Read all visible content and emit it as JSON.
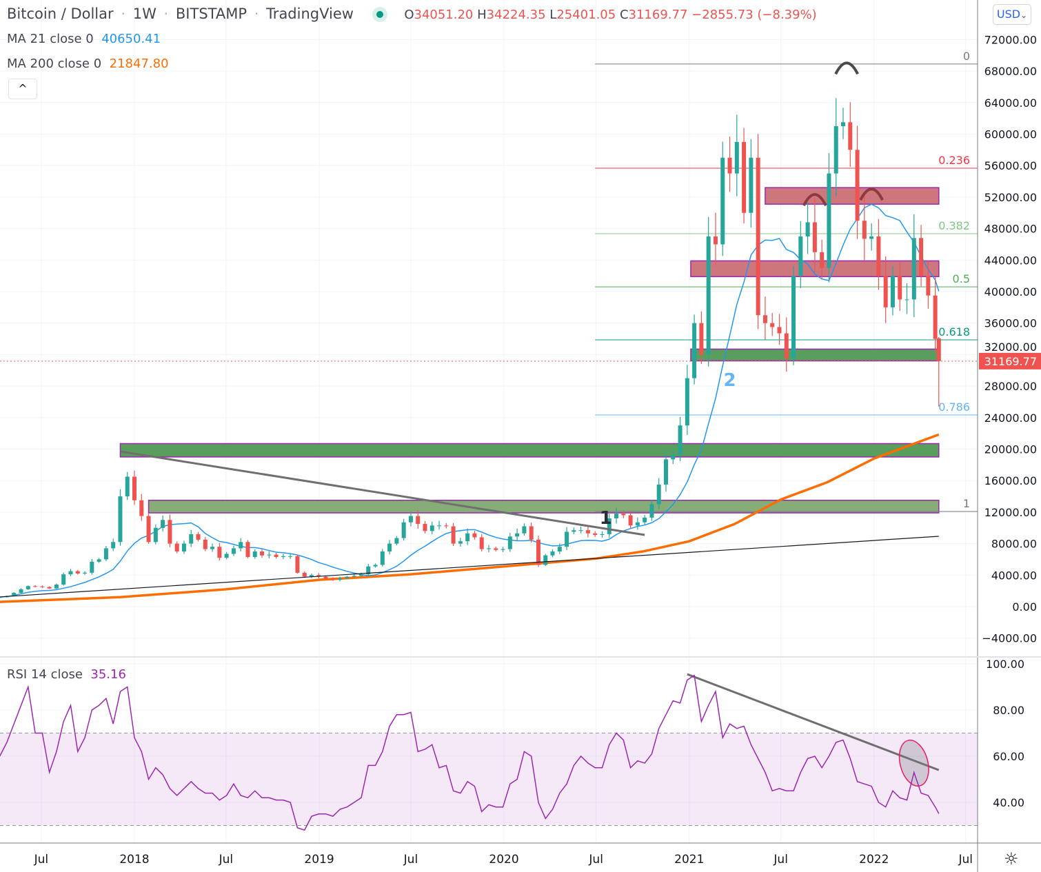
{
  "header": {
    "symbol": "Bitcoin / Dollar",
    "interval": "1W",
    "exchange": "BITSTAMP",
    "source": "TradingView",
    "sep": "·",
    "o_label": "O",
    "o": "34051.20",
    "h_label": "H",
    "h": "34224.35",
    "l_label": "L",
    "l": "25401.05",
    "c_label": "C",
    "c": "31169.77",
    "change": "−2855.73 (−8.39%)"
  },
  "indicators": {
    "ma21_label": "MA 21 close 0",
    "ma21_value": "40650.41",
    "ma200_label": "MA 200 close 0",
    "ma200_value": "21847.80",
    "rsi_label": "RSI 14 close",
    "rsi_value": "35.16"
  },
  "controls": {
    "collapse": "^",
    "currency": "USD",
    "currency_chevron": "⌄",
    "settings_icon": "gear-icon",
    "settings_glyph": "☼"
  },
  "colors": {
    "up": "#26a69a",
    "down": "#ef5350",
    "ma21": "#2196f3",
    "ma200": "#ff6d00",
    "rsi": "#9c27b0",
    "last_price": "#ef5350"
  },
  "chart_data": {
    "type": "candlestick",
    "interval": "1W",
    "last_price": "31169.77",
    "last_ohlc": [
      34051.2,
      34224.35,
      25401.05,
      31169.77
    ],
    "price_ticks": [
      72000,
      68000,
      64000,
      60000,
      56000,
      52000,
      48000,
      44000,
      40000,
      36000,
      32000,
      28000,
      24000,
      20000,
      16000,
      12000,
      8000,
      4000,
      0,
      -4000
    ],
    "price_tick_labels": [
      "72000.00",
      "68000.00",
      "64000.00",
      "60000.00",
      "56000.00",
      "52000.00",
      "48000.00",
      "44000.00",
      "40000.00",
      "36000.00",
      "32000.00",
      "28000.00",
      "24000.00",
      "20000.00",
      "16000.00",
      "12000.00",
      "8000.00",
      "4000.00",
      "0.00",
      "−4000.00"
    ],
    "rsi_ticks": [
      100,
      80,
      60,
      40
    ],
    "rsi_tick_labels": [
      "100.00",
      "80.00",
      "60.00",
      "40.00"
    ],
    "rsi_band": [
      30,
      70
    ],
    "time_ticks": [
      {
        "date": "2017-07-01",
        "label": "Jul"
      },
      {
        "date": "2018-01-01",
        "label": "2018"
      },
      {
        "date": "2018-07-01",
        "label": "Jul"
      },
      {
        "date": "2019-01-01",
        "label": "2019"
      },
      {
        "date": "2019-07-01",
        "label": "Jul"
      },
      {
        "date": "2020-01-01",
        "label": "2020"
      },
      {
        "date": "2020-07-01",
        "label": "Jul"
      },
      {
        "date": "2021-01-01",
        "label": "2021"
      },
      {
        "date": "2021-07-01",
        "label": "Jul"
      },
      {
        "date": "2022-01-01",
        "label": "2022"
      },
      {
        "date": "2022-07-01",
        "label": "Jul"
      }
    ],
    "grid": true,
    "series_columns": [
      "date",
      "close",
      "rsi"
    ],
    "candles": [
      [
        "2017-04-10",
        1200,
        60
      ],
      [
        "2017-04-24",
        1350,
        66
      ],
      [
        "2017-05-08",
        1750,
        74
      ],
      [
        "2017-05-22",
        2200,
        82
      ],
      [
        "2017-06-05",
        2600,
        90
      ],
      [
        "2017-06-19",
        2550,
        70
      ],
      [
        "2017-07-03",
        2500,
        70
      ],
      [
        "2017-07-17",
        2300,
        53
      ],
      [
        "2017-07-31",
        2800,
        62
      ],
      [
        "2017-08-14",
        4100,
        75
      ],
      [
        "2017-08-28",
        4500,
        82
      ],
      [
        "2017-09-11",
        4200,
        62
      ],
      [
        "2017-09-25",
        4300,
        68
      ],
      [
        "2017-10-09",
        5700,
        80
      ],
      [
        "2017-10-23",
        6000,
        82
      ],
      [
        "2017-11-06",
        7400,
        85
      ],
      [
        "2017-11-20",
        8200,
        74
      ],
      [
        "2017-12-04",
        14000,
        88
      ],
      [
        "2017-12-18",
        16500,
        90
      ],
      [
        "2018-01-01",
        13500,
        68
      ],
      [
        "2018-01-15",
        11500,
        62
      ],
      [
        "2018-01-29",
        8200,
        50
      ],
      [
        "2018-02-12",
        10000,
        55
      ],
      [
        "2018-02-26",
        11000,
        52
      ],
      [
        "2018-03-12",
        8000,
        46
      ],
      [
        "2018-03-26",
        7000,
        43
      ],
      [
        "2018-04-09",
        8000,
        46
      ],
      [
        "2018-04-23",
        9200,
        49
      ],
      [
        "2018-05-07",
        8500,
        46
      ],
      [
        "2018-05-21",
        7300,
        44
      ],
      [
        "2018-06-04",
        7600,
        44
      ],
      [
        "2018-06-18",
        6200,
        41
      ],
      [
        "2018-07-02",
        6700,
        43
      ],
      [
        "2018-07-16",
        7400,
        48
      ],
      [
        "2018-07-30",
        8200,
        43
      ],
      [
        "2018-08-13",
        6300,
        42
      ],
      [
        "2018-08-27",
        7000,
        45
      ],
      [
        "2018-09-10",
        6500,
        42
      ],
      [
        "2018-09-24",
        6600,
        42
      ],
      [
        "2018-10-08",
        6300,
        41
      ],
      [
        "2018-10-22",
        6400,
        41
      ],
      [
        "2018-11-05",
        6400,
        40
      ],
      [
        "2018-11-19",
        4300,
        29
      ],
      [
        "2018-12-03",
        3800,
        28
      ],
      [
        "2018-12-17",
        4000,
        34
      ],
      [
        "2018-12-31",
        3800,
        35
      ],
      [
        "2019-01-14",
        3550,
        35
      ],
      [
        "2019-01-28",
        3400,
        34
      ],
      [
        "2019-02-11",
        3600,
        37
      ],
      [
        "2019-02-25",
        3800,
        38
      ],
      [
        "2019-03-11",
        3900,
        40
      ],
      [
        "2019-03-25",
        4100,
        42
      ],
      [
        "2019-04-08",
        5100,
        56
      ],
      [
        "2019-04-22",
        5300,
        56
      ],
      [
        "2019-05-06",
        7000,
        62
      ],
      [
        "2019-05-20",
        8000,
        73
      ],
      [
        "2019-06-03",
        8700,
        78
      ],
      [
        "2019-06-17",
        10700,
        78
      ],
      [
        "2019-07-01",
        11500,
        79
      ],
      [
        "2019-07-15",
        10500,
        62
      ],
      [
        "2019-07-29",
        9600,
        63
      ],
      [
        "2019-08-12",
        10300,
        65
      ],
      [
        "2019-08-26",
        10300,
        55
      ],
      [
        "2019-09-09",
        10200,
        56
      ],
      [
        "2019-09-23",
        8000,
        45
      ],
      [
        "2019-10-07",
        8300,
        44
      ],
      [
        "2019-10-21",
        9300,
        49
      ],
      [
        "2019-11-04",
        8800,
        47
      ],
      [
        "2019-11-18",
        7300,
        36
      ],
      [
        "2019-12-02",
        7400,
        39
      ],
      [
        "2019-12-16",
        7200,
        38
      ],
      [
        "2019-12-30",
        7300,
        38
      ],
      [
        "2020-01-13",
        8900,
        48
      ],
      [
        "2020-01-27",
        9300,
        50
      ],
      [
        "2020-02-10",
        10200,
        62
      ],
      [
        "2020-02-24",
        8500,
        60
      ],
      [
        "2020-03-09",
        5300,
        40
      ],
      [
        "2020-03-23",
        6500,
        33
      ],
      [
        "2020-04-06",
        7000,
        37
      ],
      [
        "2020-04-20",
        7600,
        44
      ],
      [
        "2020-05-04",
        9500,
        48
      ],
      [
        "2020-05-18",
        9700,
        56
      ],
      [
        "2020-06-01",
        9700,
        60
      ],
      [
        "2020-06-15",
        9300,
        57
      ],
      [
        "2020-06-29",
        9100,
        55
      ],
      [
        "2020-07-13",
        9200,
        55
      ],
      [
        "2020-07-27",
        11200,
        65
      ],
      [
        "2020-08-10",
        11800,
        70
      ],
      [
        "2020-08-24",
        11600,
        67
      ],
      [
        "2020-09-07",
        10300,
        55
      ],
      [
        "2020-09-21",
        10700,
        58
      ],
      [
        "2020-10-05",
        11300,
        57
      ],
      [
        "2020-10-19",
        13000,
        61
      ],
      [
        "2020-11-02",
        15500,
        72
      ],
      [
        "2020-11-16",
        18700,
        78
      ],
      [
        "2020-11-30",
        19300,
        84
      ],
      [
        "2020-12-14",
        23000,
        83
      ],
      [
        "2020-12-28",
        29000,
        93
      ],
      [
        "2021-01-11",
        36000,
        95
      ],
      [
        "2021-01-25",
        32000,
        75
      ],
      [
        "2021-02-08",
        47000,
        82
      ],
      [
        "2021-02-22",
        46000,
        88
      ],
      [
        "2021-03-08",
        57000,
        68
      ],
      [
        "2021-03-22",
        55000,
        74
      ],
      [
        "2021-04-05",
        59000,
        72
      ],
      [
        "2021-04-19",
        50000,
        73
      ],
      [
        "2021-05-03",
        57000,
        65
      ],
      [
        "2021-05-17",
        37000,
        59
      ],
      [
        "2021-05-31",
        36000,
        53
      ],
      [
        "2021-06-14",
        35500,
        45
      ],
      [
        "2021-06-28",
        34700,
        46
      ],
      [
        "2021-07-12",
        31500,
        45
      ],
      [
        "2021-07-26",
        42000,
        45
      ],
      [
        "2021-08-09",
        47000,
        53
      ],
      [
        "2021-08-23",
        48800,
        59
      ],
      [
        "2021-09-06",
        45000,
        60
      ],
      [
        "2021-09-20",
        43000,
        55
      ],
      [
        "2021-10-04",
        55000,
        60
      ],
      [
        "2021-10-18",
        61000,
        66
      ],
      [
        "2021-11-01",
        61500,
        67
      ],
      [
        "2021-11-15",
        58000,
        59
      ],
      [
        "2021-11-29",
        49000,
        49
      ],
      [
        "2021-12-13",
        46700,
        48
      ],
      [
        "2021-12-27",
        47000,
        47
      ],
      [
        "2022-01-10",
        42000,
        40
      ],
      [
        "2022-01-24",
        38000,
        38
      ],
      [
        "2022-02-07",
        42000,
        45
      ],
      [
        "2022-02-21",
        39000,
        42
      ],
      [
        "2022-03-07",
        39000,
        41
      ],
      [
        "2022-03-21",
        46800,
        53
      ],
      [
        "2022-04-04",
        42000,
        44
      ],
      [
        "2022-04-18",
        39500,
        43
      ],
      [
        "2022-05-02",
        34000,
        38
      ],
      [
        "2022-05-09",
        31169.77,
        35.16
      ]
    ],
    "ma200": [
      [
        "2017-04-10",
        600
      ],
      [
        "2017-12-04",
        1200
      ],
      [
        "2018-07-01",
        2200
      ],
      [
        "2019-01-01",
        3400
      ],
      [
        "2019-07-01",
        4100
      ],
      [
        "2020-01-01",
        5100
      ],
      [
        "2020-07-01",
        6100
      ],
      [
        "2020-10-01",
        7000
      ],
      [
        "2021-01-01",
        8300
      ],
      [
        "2021-04-01",
        10500
      ],
      [
        "2021-07-01",
        13600
      ],
      [
        "2021-10-01",
        15800
      ],
      [
        "2022-01-01",
        18800
      ],
      [
        "2022-05-09",
        21847.8
      ]
    ],
    "zones": [
      {
        "kind": "support",
        "from": "2017-12-04",
        "to": "2022-05-09",
        "top": 20700,
        "bottom": 19000,
        "fill": "#5a9e5e"
      },
      {
        "kind": "support",
        "from": "2018-01-29",
        "to": "2022-05-09",
        "top": 13500,
        "bottom": 11900,
        "fill": "#86ad78"
      },
      {
        "kind": "resistance",
        "from": "2021-05-31",
        "to": "2022-05-09",
        "top": 53200,
        "bottom": 51100,
        "fill": "#cd767c"
      },
      {
        "kind": "resistance",
        "from": "2021-01-04",
        "to": "2022-05-09",
        "top": 43900,
        "bottom": 41900,
        "fill": "#cd767c"
      },
      {
        "kind": "support",
        "from": "2021-01-04",
        "to": "2022-05-09",
        "top": 32700,
        "bottom": 31200,
        "fill": "#5a9e5e"
      }
    ],
    "fib": {
      "from": "2020-06-29",
      "to": "2022-07-25",
      "levels": [
        {
          "label": "0",
          "price": 68900,
          "color": "#787b86"
        },
        {
          "label": "0.236",
          "price": 55670,
          "color": "#f23645"
        },
        {
          "label": "0.382",
          "price": 47350,
          "color": "#81c784"
        },
        {
          "label": "0.5",
          "price": 40600,
          "color": "#4caf50"
        },
        {
          "label": "0.618",
          "price": 33870,
          "color": "#089981"
        },
        {
          "label": "0.786",
          "price": 24330,
          "color": "#64b5f6"
        },
        {
          "label": "1",
          "price": 12080,
          "color": "#787b86"
        }
      ]
    },
    "trendlines": [
      {
        "pane": "price",
        "from": [
          "2017-12-04",
          19700
        ],
        "to": [
          "2020-10-05",
          9100
        ],
        "color": "#6f6f6f",
        "width": 3
      },
      {
        "pane": "price",
        "from": [
          "2017-04-10",
          1230
        ],
        "to": [
          "2022-05-09",
          8930
        ],
        "color": "#131722",
        "width": 1.2
      },
      {
        "pane": "rsi",
        "from": [
          "2020-12-28",
          95.5
        ],
        "to": [
          "2022-05-09",
          54
        ],
        "color": "#6f6f6f",
        "width": 3
      }
    ],
    "annotations": [
      {
        "text": "1",
        "date": "2020-07-20",
        "price": 10500,
        "color": "#2a2e39"
      },
      {
        "text": "2",
        "date": "2021-03-22",
        "price": 28000,
        "color": "#64b5f6"
      }
    ],
    "arcs": [
      {
        "date": "2021-11-08",
        "price": 68500,
        "color": "#4a4a4a"
      },
      {
        "date": "2021-09-06",
        "price": 51800,
        "color": "#8b3a3f"
      },
      {
        "date": "2021-12-27",
        "price": 52500,
        "color": "#8b3a3f"
      }
    ],
    "rsi_ellipse": {
      "date": "2022-03-21",
      "rsi": 57,
      "color": "#e91e63"
    }
  }
}
